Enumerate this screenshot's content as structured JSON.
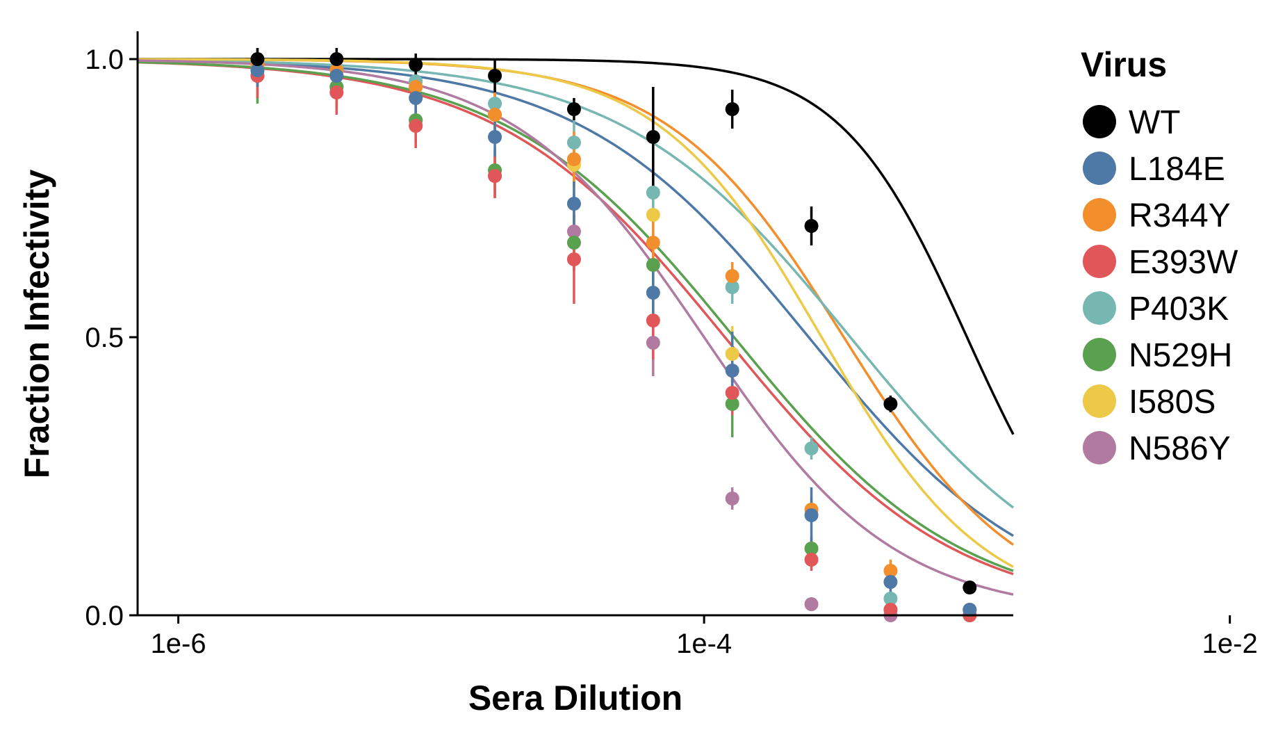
{
  "chart_data": {
    "type": "scatter",
    "xlabel": "Sera Dilution",
    "ylabel": "Fraction Infectivity",
    "xscale": "log",
    "xlim": [
      7e-07,
      0.0015
    ],
    "xticks": [
      1e-06,
      0.0001,
      0.01
    ],
    "xtick_labels": [
      "1e-6",
      "1e-4",
      "1e-2"
    ],
    "ylim": [
      0,
      1.05
    ],
    "yticks": [
      0,
      0.5,
      1
    ],
    "ytick_labels": [
      "0.0",
      "0.5",
      "1.0"
    ],
    "grid": false,
    "legend_position": "right",
    "legend_title": "Virus",
    "series": [
      {
        "name": "WT",
        "color": "#000000",
        "ic50": 0.001,
        "slope": 1.8,
        "x": [
          2e-06,
          4e-06,
          8e-06,
          1.6e-05,
          3.2e-05,
          6.4e-05,
          0.000128,
          0.000256,
          0.000512,
          0.001024
        ],
        "y": [
          1.0,
          1.0,
          0.99,
          0.97,
          0.91,
          0.86,
          0.91,
          0.7,
          0.38,
          0.05
        ],
        "err": [
          0.02,
          0.02,
          0.02,
          0.03,
          0.02,
          0.09,
          0.035,
          0.035,
          0.015,
          0.01
        ]
      },
      {
        "name": "L184E",
        "color": "#4e79a7",
        "ic50": 0.00025,
        "slope": 1.0,
        "x": [
          2e-06,
          4e-06,
          8e-06,
          1.6e-05,
          3.2e-05,
          6.4e-05,
          0.000128,
          0.000256,
          0.000512,
          0.001024
        ],
        "y": [
          0.98,
          0.97,
          0.93,
          0.86,
          0.74,
          0.58,
          0.44,
          0.18,
          0.06,
          0.01
        ],
        "err": [
          0.03,
          0.03,
          0.035,
          0.035,
          0.04,
          0.04,
          0.07,
          0.05,
          0.03,
          0.01
        ]
      },
      {
        "name": "R344Y",
        "color": "#f28e2b",
        "ic50": 0.00034,
        "slope": 1.3,
        "x": [
          2e-06,
          4e-06,
          8e-06,
          1.6e-05,
          3.2e-05,
          6.4e-05,
          0.000128,
          0.000256,
          0.000512,
          0.001024
        ],
        "y": [
          0.99,
          0.98,
          0.95,
          0.9,
          0.82,
          0.67,
          0.61,
          0.19,
          0.08,
          0.01
        ],
        "err": [
          0.02,
          0.025,
          0.03,
          0.04,
          0.05,
          0.06,
          0.025,
          0.02,
          0.02,
          0.01
        ]
      },
      {
        "name": "E393W",
        "color": "#e15759",
        "ic50": 0.00012,
        "slope": 1.0,
        "x": [
          2e-06,
          4e-06,
          8e-06,
          1.6e-05,
          3.2e-05,
          6.4e-05,
          0.000128,
          0.000256,
          0.000512,
          0.001024
        ],
        "y": [
          0.97,
          0.94,
          0.88,
          0.79,
          0.64,
          0.53,
          0.4,
          0.1,
          0.01,
          0.0
        ],
        "err": [
          0.04,
          0.04,
          0.04,
          0.04,
          0.08,
          0.07,
          0.04,
          0.02,
          0.01,
          0.01
        ]
      },
      {
        "name": "P403K",
        "color": "#76b7b2",
        "ic50": 0.00036,
        "slope": 1.0,
        "x": [
          2e-06,
          4e-06,
          8e-06,
          1.6e-05,
          3.2e-05,
          6.4e-05,
          0.000128,
          0.000256,
          0.000512,
          0.001024
        ],
        "y": [
          0.99,
          0.98,
          0.96,
          0.92,
          0.85,
          0.76,
          0.59,
          0.3,
          0.03,
          0.01
        ],
        "err": [
          0.02,
          0.02,
          0.03,
          0.03,
          0.04,
          0.05,
          0.03,
          0.02,
          0.01,
          0.01
        ]
      },
      {
        "name": "N529H",
        "color": "#59a14f",
        "ic50": 0.00013,
        "slope": 1.0,
        "x": [
          2e-06,
          4e-06,
          8e-06,
          1.6e-05,
          3.2e-05,
          6.4e-05,
          0.000128,
          0.000256,
          0.000512,
          0.001024
        ],
        "y": [
          0.97,
          0.95,
          0.89,
          0.8,
          0.67,
          0.63,
          0.38,
          0.12,
          0.01,
          0.0
        ],
        "err": [
          0.05,
          0.04,
          0.04,
          0.04,
          0.05,
          0.08,
          0.06,
          0.02,
          0.01,
          0.01
        ]
      },
      {
        "name": "I580S",
        "color": "#edc948",
        "ic50": 0.00028,
        "slope": 1.4,
        "x": [
          2e-06,
          4e-06,
          8e-06,
          1.6e-05,
          3.2e-05,
          6.4e-05,
          0.000128,
          0.000256,
          0.000512,
          0.001024
        ],
        "y": [
          0.99,
          0.98,
          0.95,
          0.9,
          0.81,
          0.72,
          0.47,
          0.12,
          0.01,
          0.0
        ],
        "err": [
          0.03,
          0.03,
          0.03,
          0.04,
          0.05,
          0.06,
          0.05,
          0.02,
          0.01,
          0.01
        ]
      },
      {
        "name": "N586Y",
        "color": "#b07aa1",
        "ic50": 0.0001,
        "slope": 1.2,
        "x": [
          2e-06,
          4e-06,
          8e-06,
          1.6e-05,
          3.2e-05,
          6.4e-05,
          0.000128,
          0.000256,
          0.000512,
          0.001024
        ],
        "y": [
          0.98,
          0.95,
          0.89,
          0.79,
          0.69,
          0.49,
          0.21,
          0.02,
          0.0,
          0.0
        ],
        "err": [
          0.03,
          0.03,
          0.04,
          0.04,
          0.07,
          0.06,
          0.02,
          0.01,
          0.01,
          0.01
        ]
      }
    ]
  }
}
